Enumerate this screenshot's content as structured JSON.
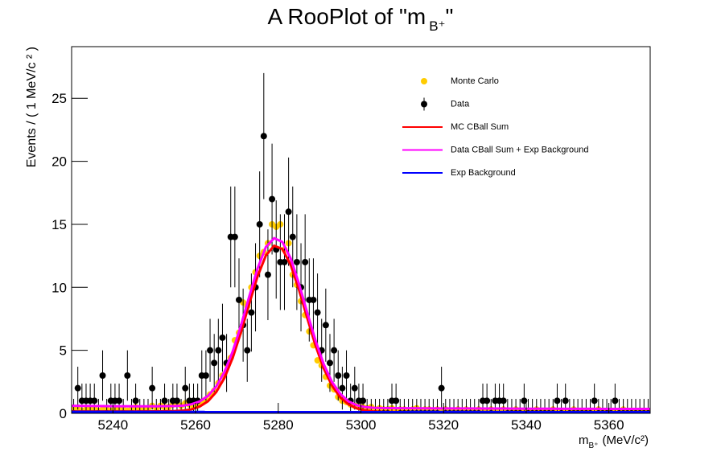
{
  "chart_data": {
    "type": "rooplot",
    "title": [
      "A RooPlot of \"m",
      "B⁺",
      "\""
    ],
    "y_label": "Events / ( 1 MeV/c ² )",
    "x_label": [
      "m",
      "B⁺",
      "(MeV/c²)"
    ],
    "xlim": [
      5230,
      5370
    ],
    "xticks": [
      5240,
      5260,
      5280,
      5300,
      5320,
      5340,
      5360
    ],
    "ylim": [
      0,
      29.1
    ],
    "yticks": [
      0,
      5,
      10,
      15,
      20,
      25
    ],
    "x": [
      5230.5,
      5231.5,
      5232.5,
      5233.5,
      5234.5,
      5235.5,
      5236.5,
      5237.5,
      5238.5,
      5239.5,
      5240.5,
      5241.5,
      5242.5,
      5243.5,
      5244.5,
      5245.5,
      5246.5,
      5247.5,
      5248.5,
      5249.5,
      5250.5,
      5251.5,
      5252.5,
      5253.5,
      5254.5,
      5255.5,
      5256.5,
      5257.5,
      5258.5,
      5259.5,
      5260.5,
      5261.5,
      5262.5,
      5263.5,
      5264.5,
      5265.5,
      5266.5,
      5267.5,
      5268.5,
      5269.5,
      5270.5,
      5271.5,
      5272.5,
      5273.5,
      5274.5,
      5275.5,
      5276.5,
      5277.5,
      5278.5,
      5279.5,
      5280.5,
      5281.5,
      5282.5,
      5283.5,
      5284.5,
      5285.5,
      5286.5,
      5287.5,
      5288.5,
      5289.5,
      5290.5,
      5291.5,
      5292.5,
      5293.5,
      5294.5,
      5295.5,
      5296.5,
      5297.5,
      5298.5,
      5299.5,
      5300.5,
      5301.5,
      5302.5,
      5303.5,
      5304.5,
      5305.5,
      5306.5,
      5307.5,
      5308.5,
      5309.5,
      5310.5,
      5311.5,
      5312.5,
      5313.5,
      5314.5,
      5315.5,
      5316.5,
      5317.5,
      5318.5,
      5319.5,
      5320.5,
      5321.5,
      5322.5,
      5323.5,
      5324.5,
      5325.5,
      5326.5,
      5327.5,
      5328.5,
      5329.5,
      5330.5,
      5331.5,
      5332.5,
      5333.5,
      5334.5,
      5335.5,
      5336.5,
      5337.5,
      5338.5,
      5339.5,
      5340.5,
      5341.5,
      5342.5,
      5343.5,
      5344.5,
      5345.5,
      5346.5,
      5347.5,
      5348.5,
      5349.5,
      5350.5,
      5351.5,
      5352.5,
      5353.5,
      5354.5,
      5355.5,
      5356.5,
      5357.5,
      5358.5,
      5359.5,
      5360.5,
      5361.5,
      5362.5,
      5363.5,
      5364.5,
      5365.5,
      5366.5,
      5367.5,
      5368.5,
      5369.5
    ],
    "series": [
      {
        "name": "Monte Carlo",
        "style": "points",
        "color": "#ffcc00",
        "values": [
          0.3,
          0.4,
          0.2,
          0.3,
          0.3,
          0.4,
          0.2,
          0.3,
          0.3,
          0.2,
          0.3,
          0.4,
          0.3,
          0.2,
          0.3,
          0.5,
          0.3,
          0.4,
          0.4,
          0.6,
          0.4,
          0.6,
          0.5,
          0.5,
          0.7,
          0.8,
          0.6,
          0.8,
          0.7,
          0.6,
          0.7,
          0.9,
          1.1,
          1.5,
          1.8,
          2.4,
          3.0,
          3.9,
          4.4,
          5.8,
          6.4,
          8.8,
          8.5,
          10.0,
          11.2,
          12.5,
          12.8,
          13.5,
          15.0,
          14.8,
          15.0,
          13.0,
          13.5,
          11.0,
          10.2,
          8.9,
          7.8,
          6.5,
          5.4,
          4.2,
          3.8,
          2.9,
          2.2,
          1.9,
          1.3,
          1.0,
          0.9,
          0.7,
          0.6,
          0.5,
          0.5,
          0.4,
          0.5,
          0.3,
          0.4,
          0.3,
          0.3,
          0.4,
          0.2,
          0.3,
          0.3,
          0.2,
          0.3,
          0.4,
          0.2,
          0.3,
          0.3,
          0.2,
          0.3,
          0.2,
          0.3,
          0.2,
          0.2,
          0.3,
          0.2,
          0.3,
          0.2,
          0.2,
          0.3,
          0.2,
          0.2,
          0.3,
          0.2,
          0.2,
          0.3,
          0.2,
          0.2,
          0.3,
          0.2,
          0.2,
          0.2,
          0.2,
          0.3,
          0.2,
          0.2,
          0.2,
          0.3,
          0.2,
          0.2,
          0.2,
          0.2,
          0.3,
          0.2,
          0.2,
          0.2,
          0.2,
          0.2,
          0.3,
          0.2,
          0.2,
          0.2,
          0.2,
          0.2,
          0.3,
          0.2,
          0.2,
          0.2,
          0.2,
          0.2,
          0.2
        ]
      },
      {
        "name": "Data",
        "style": "points",
        "color": "#000000",
        "values": [
          0,
          2,
          1,
          1,
          1,
          1,
          0,
          3,
          0,
          1,
          1,
          1,
          0,
          3,
          0,
          1,
          0,
          0,
          0,
          2,
          0,
          0,
          1,
          0,
          1,
          1,
          0,
          2,
          1,
          1,
          1,
          3,
          3,
          5,
          4,
          5,
          6,
          4,
          14,
          14,
          9,
          7,
          5,
          8,
          10,
          15,
          22,
          11,
          17,
          13,
          12,
          12,
          16,
          14,
          12,
          10,
          12,
          9,
          9,
          8,
          5,
          7,
          4,
          5,
          3,
          2,
          3,
          1,
          2,
          1,
          1,
          0,
          0,
          0,
          0,
          0,
          0,
          1,
          1,
          0,
          0,
          0,
          0,
          0,
          0,
          0,
          0,
          0,
          0,
          2,
          0,
          0,
          0,
          0,
          0,
          0,
          0,
          0,
          0,
          1,
          1,
          0,
          1,
          1,
          1,
          0,
          0,
          0,
          0,
          1,
          0,
          0,
          0,
          0,
          0,
          0,
          0,
          1,
          0,
          1,
          0,
          0,
          0,
          0,
          0,
          0,
          1,
          0,
          0,
          0,
          0,
          1,
          0,
          0,
          0,
          0,
          0,
          0,
          0,
          0
        ],
        "errors": [
          1.15,
          1.7,
          1.36,
          1.36,
          1.36,
          1.36,
          1.15,
          2.0,
          1.15,
          1.36,
          1.36,
          1.36,
          1.15,
          2.0,
          1.15,
          1.36,
          1.15,
          1.15,
          1.15,
          1.7,
          1.15,
          1.15,
          1.36,
          1.15,
          1.36,
          1.36,
          1.15,
          1.7,
          1.36,
          1.36,
          1.36,
          2.0,
          2.0,
          2.5,
          2.3,
          2.5,
          2.7,
          2.3,
          4.0,
          4.0,
          3.3,
          2.9,
          2.5,
          3.1,
          3.5,
          4.2,
          5.0,
          3.6,
          4.4,
          3.9,
          3.8,
          3.8,
          4.3,
          4.0,
          3.8,
          3.5,
          3.8,
          3.3,
          3.3,
          3.1,
          2.5,
          2.9,
          2.3,
          2.5,
          2.0,
          1.7,
          2.0,
          1.36,
          1.7,
          1.36,
          1.36,
          1.15,
          1.15,
          1.15,
          1.15,
          1.15,
          1.15,
          1.36,
          1.36,
          1.15,
          1.15,
          1.15,
          1.15,
          1.15,
          1.15,
          1.15,
          1.15,
          1.15,
          1.15,
          1.7,
          1.15,
          1.15,
          1.15,
          1.15,
          1.15,
          1.15,
          1.15,
          1.15,
          1.15,
          1.36,
          1.36,
          1.15,
          1.36,
          1.36,
          1.36,
          1.15,
          1.15,
          1.15,
          1.15,
          1.36,
          1.15,
          1.15,
          1.15,
          1.15,
          1.15,
          1.15,
          1.15,
          1.36,
          1.15,
          1.36,
          1.15,
          1.15,
          1.15,
          1.15,
          1.15,
          1.15,
          1.36,
          1.15,
          1.15,
          1.15,
          1.15,
          1.36,
          1.15,
          1.15,
          1.15,
          1.15,
          1.15,
          1.15,
          1.15,
          1.15
        ]
      },
      {
        "name": "MC CBall Sum",
        "style": "line",
        "color": "#ff0000",
        "x": [
          5230,
          5235,
          5240,
          5245,
          5250,
          5255,
          5257,
          5259,
          5261,
          5263,
          5265,
          5267,
          5269,
          5271,
          5273,
          5275,
          5277,
          5279,
          5281,
          5283,
          5285,
          5287,
          5289,
          5291,
          5293,
          5295,
          5297,
          5299,
          5301,
          5303,
          5305,
          5310,
          5315,
          5320,
          5325,
          5330,
          5335,
          5340,
          5345,
          5350,
          5355,
          5360,
          5365,
          5370
        ],
        "values": [
          0.15,
          0.15,
          0.15,
          0.15,
          0.16,
          0.18,
          0.22,
          0.32,
          0.54,
          0.96,
          1.69,
          2.82,
          4.43,
          6.45,
          8.72,
          10.87,
          12.52,
          13.3,
          13.04,
          11.79,
          9.83,
          7.58,
          5.4,
          3.56,
          2.2,
          1.27,
          0.71,
          0.39,
          0.23,
          0.15,
          0.12,
          0.1,
          0.1,
          0.1,
          0.1,
          0.1,
          0.1,
          0.1,
          0.1,
          0.1,
          0.1,
          0.1,
          0.1,
          0.1
        ]
      },
      {
        "name": "Data CBall Sum + Exp Background",
        "style": "line",
        "color": "#ff00ff",
        "x": [
          5230,
          5235,
          5240,
          5245,
          5250,
          5255,
          5257,
          5259,
          5261,
          5263,
          5265,
          5267,
          5269,
          5271,
          5273,
          5275,
          5277,
          5279,
          5281,
          5283,
          5285,
          5287,
          5289,
          5291,
          5293,
          5295,
          5297,
          5299,
          5301,
          5303,
          5305,
          5310,
          5315,
          5320,
          5325,
          5330,
          5335,
          5340,
          5345,
          5350,
          5355,
          5360,
          5365,
          5370
        ],
        "values": [
          0.6,
          0.58,
          0.57,
          0.56,
          0.56,
          0.58,
          0.61,
          0.72,
          0.95,
          1.38,
          2.13,
          3.3,
          4.93,
          7.0,
          9.3,
          11.5,
          13.2,
          13.9,
          13.6,
          12.3,
          10.3,
          8.0,
          5.8,
          3.9,
          2.5,
          1.55,
          0.95,
          0.64,
          0.5,
          0.44,
          0.42,
          0.41,
          0.4,
          0.39,
          0.39,
          0.38,
          0.38,
          0.37,
          0.37,
          0.36,
          0.36,
          0.35,
          0.35,
          0.35
        ]
      },
      {
        "name": "Exp Background",
        "style": "line",
        "color": "#0000ff",
        "x": [
          5230,
          5370
        ],
        "values": [
          0.12,
          0.1
        ]
      }
    ]
  }
}
